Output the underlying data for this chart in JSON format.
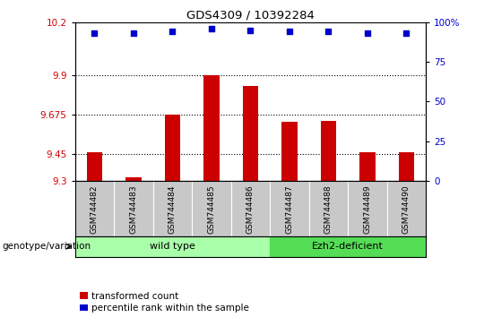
{
  "title": "GDS4309 / 10392284",
  "samples": [
    "GSM744482",
    "GSM744483",
    "GSM744484",
    "GSM744485",
    "GSM744486",
    "GSM744487",
    "GSM744488",
    "GSM744489",
    "GSM744490"
  ],
  "bar_values": [
    9.46,
    9.32,
    9.675,
    9.9,
    9.84,
    9.635,
    9.64,
    9.46,
    9.46
  ],
  "percentile_values": [
    93,
    93,
    94,
    96,
    95,
    94,
    94,
    93,
    93
  ],
  "ylim_left": [
    9.3,
    10.2
  ],
  "ylim_right": [
    0,
    100
  ],
  "yticks_left": [
    9.3,
    9.45,
    9.675,
    9.9,
    10.2
  ],
  "yticks_right": [
    0,
    25,
    50,
    75,
    100
  ],
  "hlines": [
    9.9,
    9.675,
    9.45
  ],
  "bar_color": "#cc0000",
  "dot_color": "#0000cc",
  "bar_width": 0.4,
  "wild_type_count": 5,
  "ezh2_count": 4,
  "wild_type_label": "wild type",
  "ezh2_label": "Ezh2-deficient",
  "genotype_label": "genotype/variation",
  "legend_bar_label": "transformed count",
  "legend_dot_label": "percentile rank within the sample",
  "wild_type_color": "#aaffaa",
  "ezh2_color": "#55dd55",
  "tick_label_color_left": "#cc0000",
  "tick_label_color_right": "#0000cc",
  "bottom_band_color": "#c8c8c8",
  "plot_bg_color": "#ffffff"
}
